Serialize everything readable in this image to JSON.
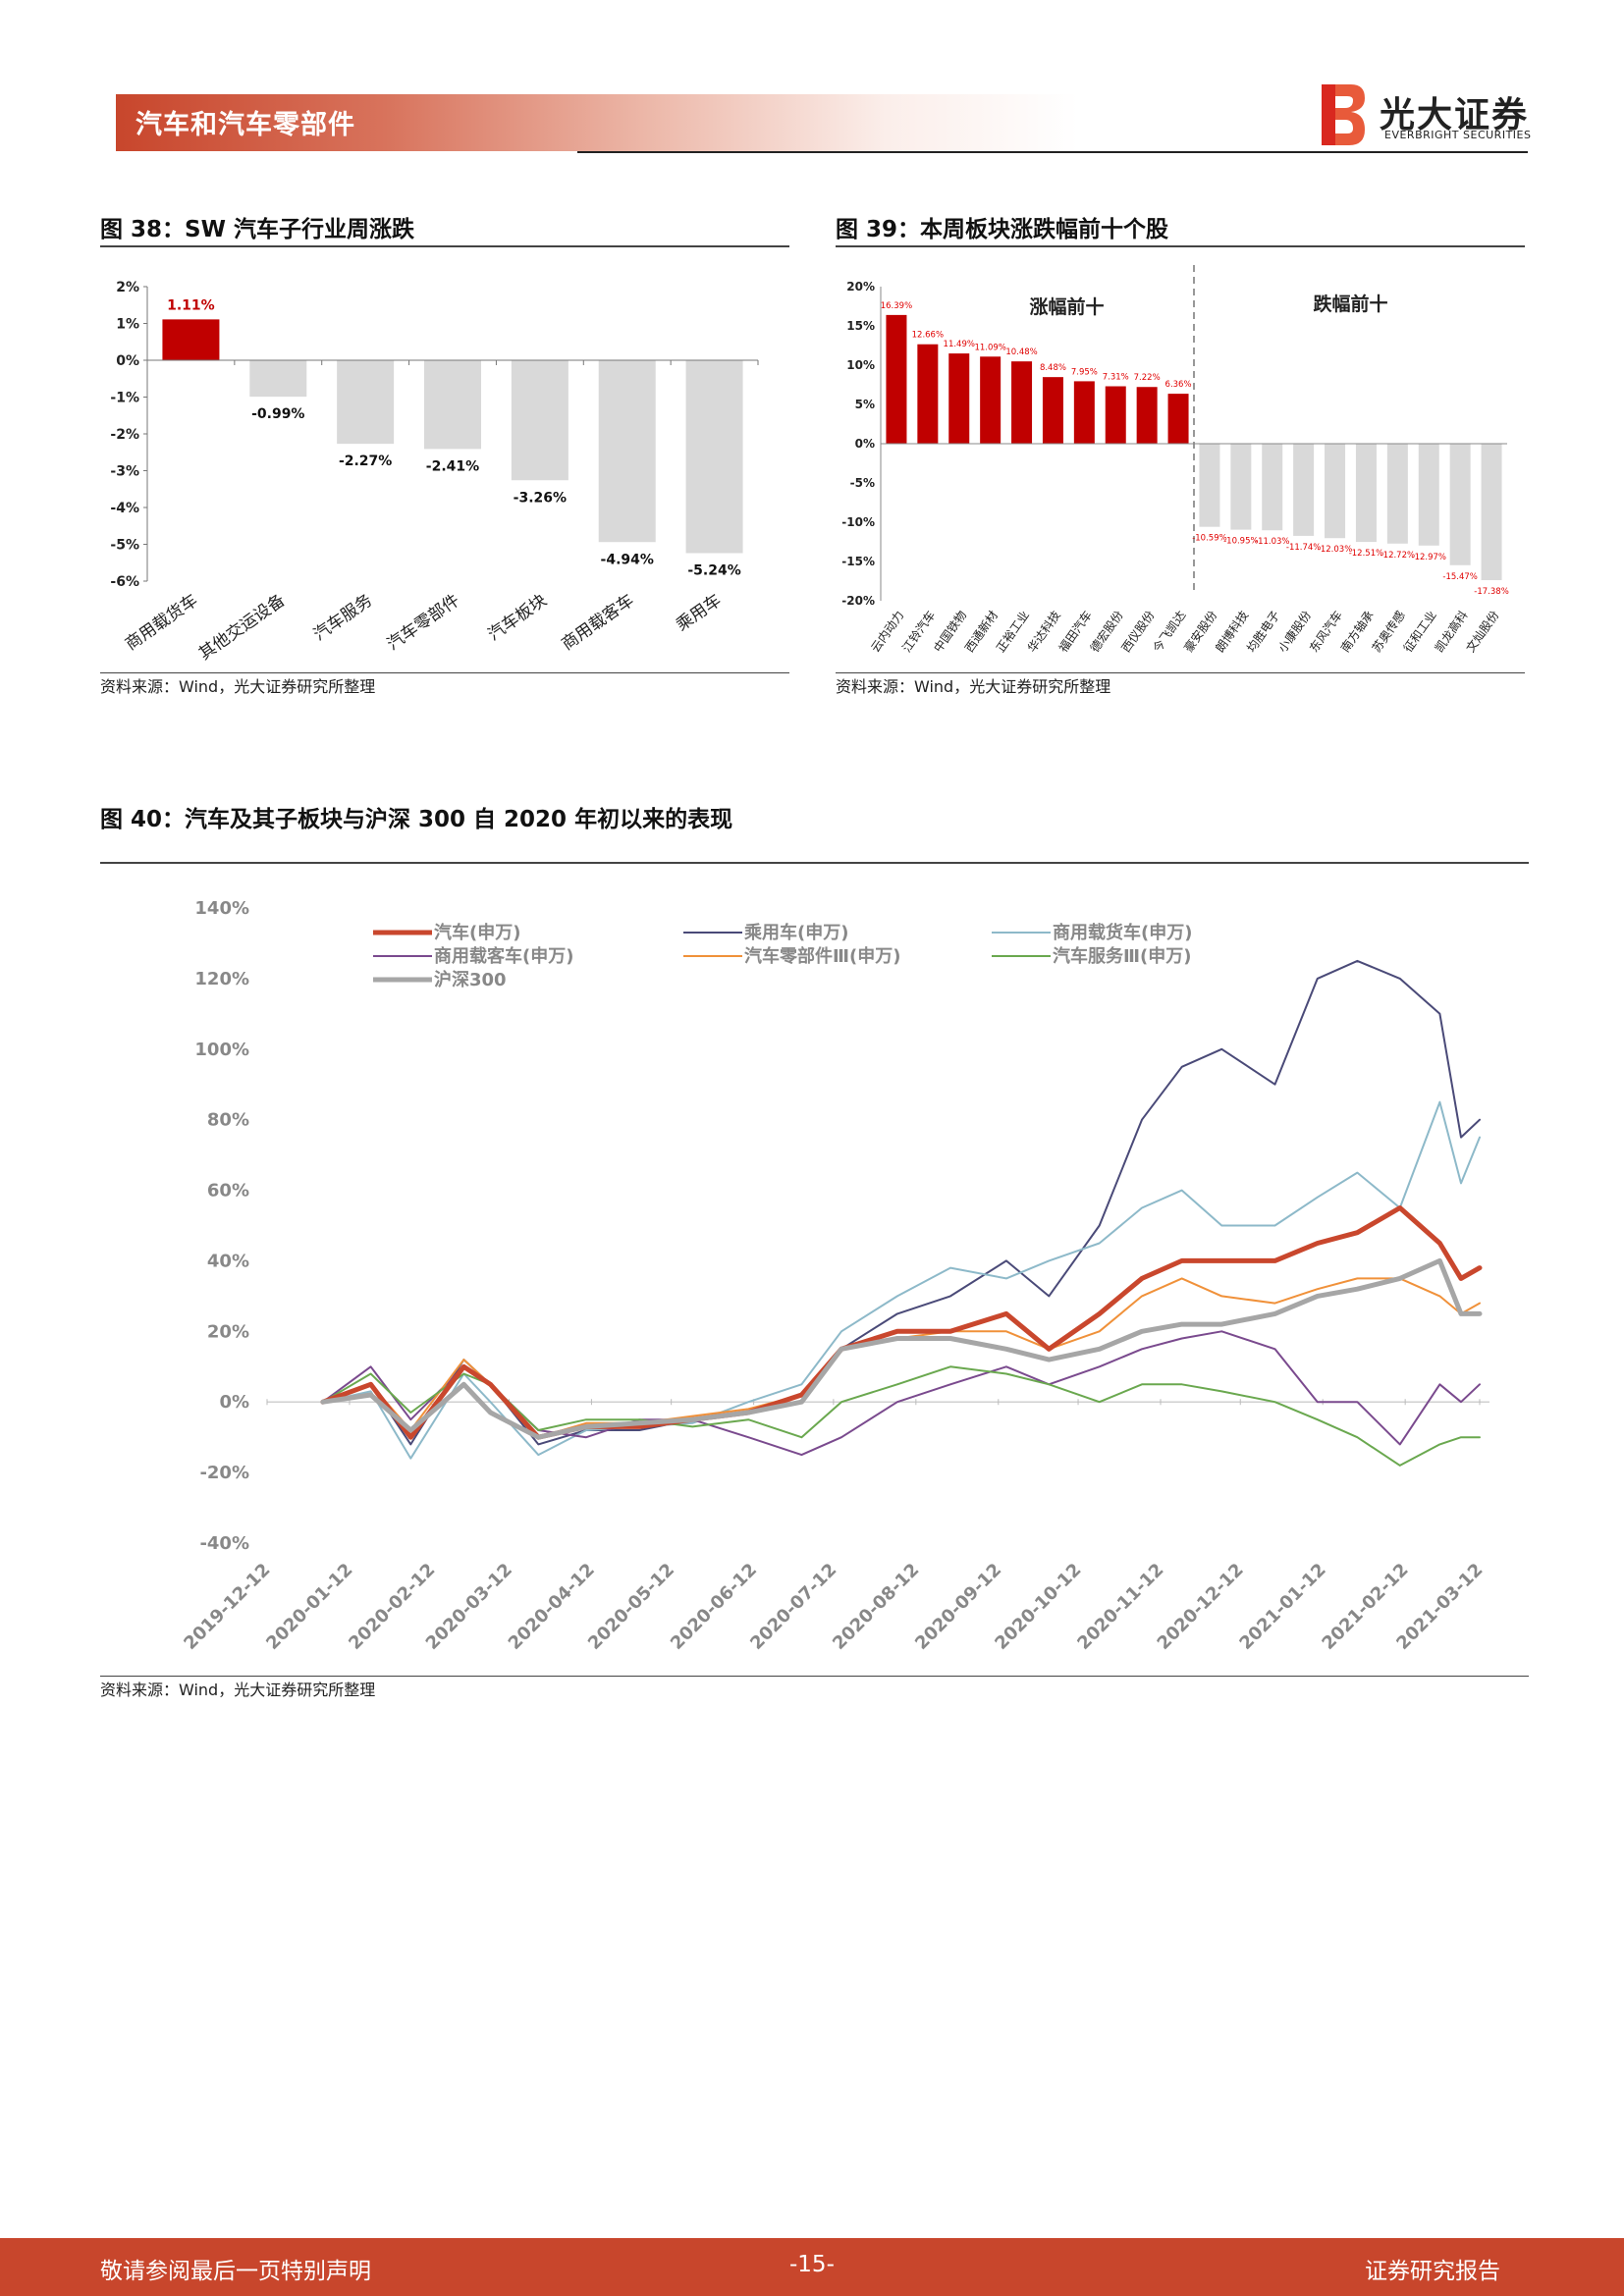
{
  "header": {
    "title": "汽车和汽车零部件",
    "logo_cn": "光大证券",
    "logo_en": "EVERBRIGHT SECURITIES",
    "accent": "#c8462c"
  },
  "fig38": {
    "title": "图 38：SW 汽车子行业周涨跌",
    "source": "资料来源：Wind，光大证券研究所整理",
    "chart_data": {
      "type": "bar",
      "categories": [
        "商用载货车",
        "其他交运设备",
        "汽车服务",
        "汽车零部件",
        "汽车板块",
        "商用载客车",
        "乘用车"
      ],
      "values": [
        1.11,
        -0.99,
        -2.27,
        -2.41,
        -3.26,
        -4.94,
        -5.24
      ],
      "labels": [
        "1.11%",
        "-0.99%",
        "-2.27%",
        "-2.41%",
        "-3.26%",
        "-4.94%",
        "-5.24%"
      ],
      "ylim": [
        -6,
        2
      ],
      "yticks": [
        "2%",
        "1%",
        "0%",
        "-1%",
        "-2%",
        "-3%",
        "-4%",
        "-5%",
        "-6%"
      ],
      "colors": {
        "positive": "#c00000",
        "negative": "#d9d9d9"
      }
    }
  },
  "fig39": {
    "title": "图 39：本周板块涨跌幅前十个股",
    "source": "资料来源：Wind，光大证券研究所整理",
    "chart_data": {
      "type": "bar",
      "group_labels": [
        "涨幅前十",
        "跌幅前十"
      ],
      "categories": [
        "云内动力",
        "江铃汽车",
        "中国铁物",
        "西通新材",
        "正裕工业",
        "华达科技",
        "福田汽车",
        "德宏股份",
        "西仪股份",
        "今飞凯达",
        "豪安股份",
        "朗博科技",
        "均胜电子",
        "小康股份",
        "东风汽车",
        "南方轴承",
        "苏奥传感",
        "征和工业",
        "凯龙高科",
        "文灿股份"
      ],
      "values": [
        16.39,
        12.66,
        11.49,
        11.09,
        10.48,
        8.48,
        7.95,
        7.31,
        7.22,
        6.36,
        -10.59,
        -10.95,
        -11.03,
        -11.74,
        -12.03,
        -12.51,
        -12.72,
        -12.97,
        -15.47,
        -17.38
      ],
      "labels": [
        "16.39%",
        "12.66%",
        "11.49%",
        "11.09%",
        "10.48%",
        "8.48%",
        "7.95%",
        "7.31%",
        "7.22%",
        "6.36%",
        "-10.59%",
        "-10.95%",
        "-11.03%",
        "-11.74%",
        "-12.03%",
        "-12.51%",
        "-12.72%",
        "-12.97%",
        "-15.47%",
        "-17.38%"
      ],
      "ylim": [
        -20,
        20
      ],
      "yticks": [
        "20%",
        "15%",
        "10%",
        "5%",
        "0%",
        "-5%",
        "-10%",
        "-15%",
        "-20%"
      ],
      "colors": {
        "positive": "#c00000",
        "negative": "#d9d9d9",
        "label": "#e00000"
      }
    }
  },
  "fig40": {
    "title": "图 40：汽车及其子板块与沪深 300 自 2020 年初以来的表现",
    "source": "资料来源：Wind，光大证券研究所整理",
    "chart_data": {
      "type": "line",
      "ylim": [
        -40,
        140
      ],
      "yticks": [
        "140%",
        "120%",
        "100%",
        "80%",
        "60%",
        "40%",
        "20%",
        "0%",
        "-20%",
        "-40%"
      ],
      "xticks": [
        "2019-12-12",
        "2020-01-12",
        "2020-02-12",
        "2020-03-12",
        "2020-04-12",
        "2020-05-12",
        "2020-06-12",
        "2020-07-12",
        "2020-08-12",
        "2020-09-12",
        "2020-10-12",
        "2020-11-12",
        "2020-12-12",
        "2021-01-12",
        "2021-02-12",
        "2021-03-12"
      ],
      "x": [
        "2020-01-02",
        "2020-01-20",
        "2020-02-04",
        "2020-02-24",
        "2020-03-05",
        "2020-03-23",
        "2020-04-10",
        "2020-04-30",
        "2020-05-20",
        "2020-06-10",
        "2020-06-30",
        "2020-07-15",
        "2020-08-05",
        "2020-08-25",
        "2020-09-15",
        "2020-10-01",
        "2020-10-20",
        "2020-11-05",
        "2020-11-20",
        "2020-12-05",
        "2020-12-25",
        "2021-01-10",
        "2021-01-25",
        "2021-02-10",
        "2021-02-25",
        "2021-03-05",
        "2021-03-12"
      ],
      "series": [
        {
          "name": "汽车(申万)",
          "color": "#c9472d",
          "width": 5,
          "values": [
            0,
            5,
            -10,
            10,
            5,
            -10,
            -7,
            -7,
            -5,
            -3,
            2,
            15,
            20,
            20,
            25,
            15,
            25,
            35,
            40,
            40,
            40,
            45,
            48,
            55,
            45,
            35,
            38
          ]
        },
        {
          "name": "乘用车(申万)",
          "color": "#4a4a78",
          "width": 2,
          "values": [
            0,
            5,
            -12,
            12,
            5,
            -12,
            -8,
            -8,
            -5,
            -3,
            0,
            15,
            25,
            30,
            40,
            30,
            50,
            80,
            95,
            100,
            90,
            120,
            125,
            120,
            110,
            75,
            80
          ]
        },
        {
          "name": "商用载货车(申万)",
          "color": "#8db9c9",
          "width": 2,
          "values": [
            0,
            3,
            -16,
            8,
            0,
            -15,
            -8,
            -7,
            -6,
            0,
            5,
            20,
            30,
            38,
            35,
            40,
            45,
            55,
            60,
            50,
            50,
            58,
            65,
            55,
            85,
            62,
            75
          ]
        },
        {
          "name": "商用载客车(申万)",
          "color": "#7a4a8e",
          "width": 2,
          "values": [
            0,
            10,
            -5,
            10,
            5,
            -8,
            -10,
            -5,
            -5,
            -10,
            -15,
            -10,
            0,
            5,
            10,
            5,
            10,
            15,
            18,
            20,
            15,
            0,
            0,
            -12,
            5,
            0,
            5
          ]
        },
        {
          "name": "汽车零部件Ⅲ(申万)",
          "color": "#f0913a",
          "width": 2,
          "values": [
            0,
            5,
            -8,
            12,
            5,
            -10,
            -6,
            -6,
            -4,
            -2,
            2,
            15,
            18,
            20,
            20,
            15,
            20,
            30,
            35,
            30,
            28,
            32,
            35,
            35,
            30,
            25,
            28
          ]
        },
        {
          "name": "汽车服务Ⅲ(申万)",
          "color": "#6aa84f",
          "width": 2,
          "values": [
            0,
            8,
            -3,
            8,
            5,
            -8,
            -5,
            -5,
            -7,
            -5,
            -10,
            0,
            5,
            10,
            8,
            5,
            0,
            5,
            5,
            3,
            0,
            -5,
            -10,
            -18,
            -12,
            -10,
            -10
          ]
        },
        {
          "name": "沪深300",
          "color": "#a6a6a6",
          "width": 5,
          "values": [
            0,
            2,
            -8,
            5,
            -3,
            -10,
            -7,
            -6,
            -5,
            -3,
            0,
            15,
            18,
            18,
            15,
            12,
            15,
            20,
            22,
            22,
            25,
            30,
            32,
            35,
            40,
            25,
            25
          ]
        }
      ]
    }
  },
  "footer": {
    "left": "敬请参阅最后一页特别声明",
    "page": "-15-",
    "right": "证券研究报告"
  }
}
